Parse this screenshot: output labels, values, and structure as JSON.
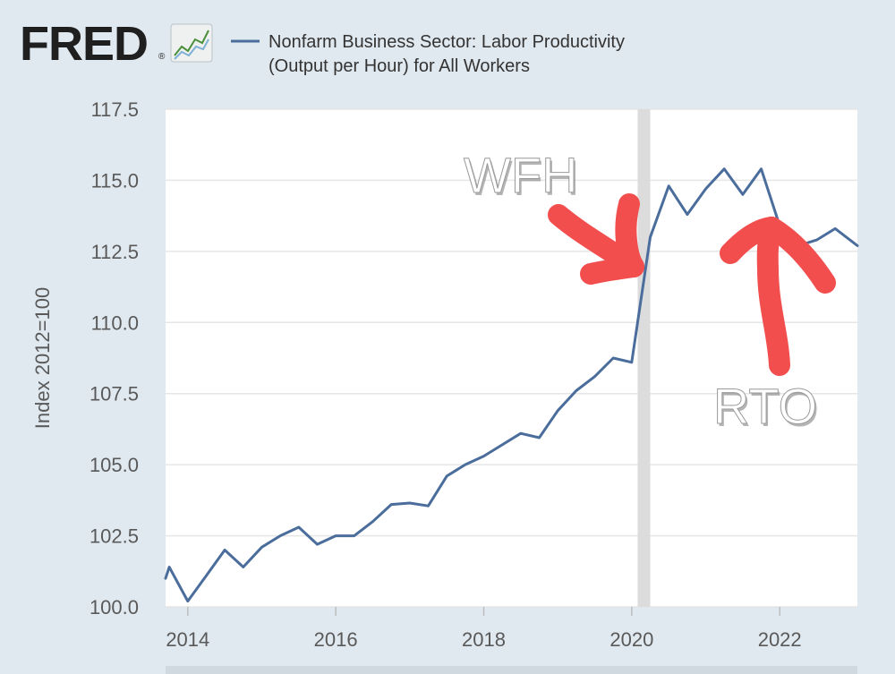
{
  "logo": {
    "wordmark": "FRED",
    "registered": "®"
  },
  "colors": {
    "background": "#e1e9f0",
    "plot_background": "#ffffff",
    "series_line": "#4a6d9c",
    "recession_shade": "#dcdcdc",
    "arrow": "#f24e4e",
    "annotation_text": "#ffffff",
    "grid": "#e6e6e6",
    "axis_text": "#595959",
    "logo_text": "#1f1f1f"
  },
  "chart_data": {
    "type": "line",
    "title": "",
    "xlabel": "",
    "ylabel": "Index 2012=100",
    "legend": {
      "placement": "top",
      "entries": [
        "Nonfarm Business Sector: Labor Productivity",
        "(Output per Hour) for All Workers"
      ]
    },
    "xlim": [
      2013.7,
      2023.05
    ],
    "ylim": [
      100.0,
      117.5
    ],
    "yticks": [
      100.0,
      102.5,
      105.0,
      107.5,
      110.0,
      112.5,
      115.0,
      117.5
    ],
    "ytick_labels": [
      "100.0",
      "102.5",
      "105.0",
      "107.5",
      "110.0",
      "112.5",
      "115.0",
      "117.5"
    ],
    "xticks": [
      2014,
      2016,
      2018,
      2020,
      2022
    ],
    "xtick_labels": [
      "2014",
      "2016",
      "2018",
      "2020",
      "2022"
    ],
    "grid": "horizontal",
    "recession_shade": {
      "x_start": 2020.08,
      "x_end": 2020.25
    },
    "series": [
      {
        "name": "Nonfarm Business Sector: Labor Productivity (Output per Hour) for All Workers",
        "x": [
          2013.7,
          2013.75,
          2014.0,
          2014.25,
          2014.5,
          2014.75,
          2015.0,
          2015.25,
          2015.5,
          2015.75,
          2016.0,
          2016.25,
          2016.5,
          2016.75,
          2017.0,
          2017.25,
          2017.5,
          2017.75,
          2018.0,
          2018.25,
          2018.5,
          2018.75,
          2019.0,
          2019.25,
          2019.5,
          2019.75,
          2020.0,
          2020.25,
          2020.5,
          2020.75,
          2021.0,
          2021.25,
          2021.5,
          2021.75,
          2022.0,
          2022.25,
          2022.5,
          2022.75,
          2023.0,
          2023.05
        ],
        "y": [
          101.0,
          101.4,
          100.2,
          101.1,
          102.0,
          101.4,
          102.1,
          102.5,
          102.8,
          102.2,
          102.5,
          102.5,
          103.0,
          103.6,
          103.65,
          103.55,
          104.6,
          105.0,
          105.3,
          105.7,
          106.1,
          105.95,
          106.9,
          107.6,
          108.1,
          108.75,
          108.6,
          113.0,
          114.8,
          113.8,
          114.7,
          115.4,
          114.5,
          115.4,
          113.4,
          112.7,
          112.9,
          113.3,
          112.8,
          112.7
        ]
      }
    ],
    "annotations": [
      {
        "text": "WFH",
        "kind": "handwritten-arrow-label"
      },
      {
        "text": "RTO",
        "kind": "handwritten-arrow-label"
      }
    ]
  }
}
